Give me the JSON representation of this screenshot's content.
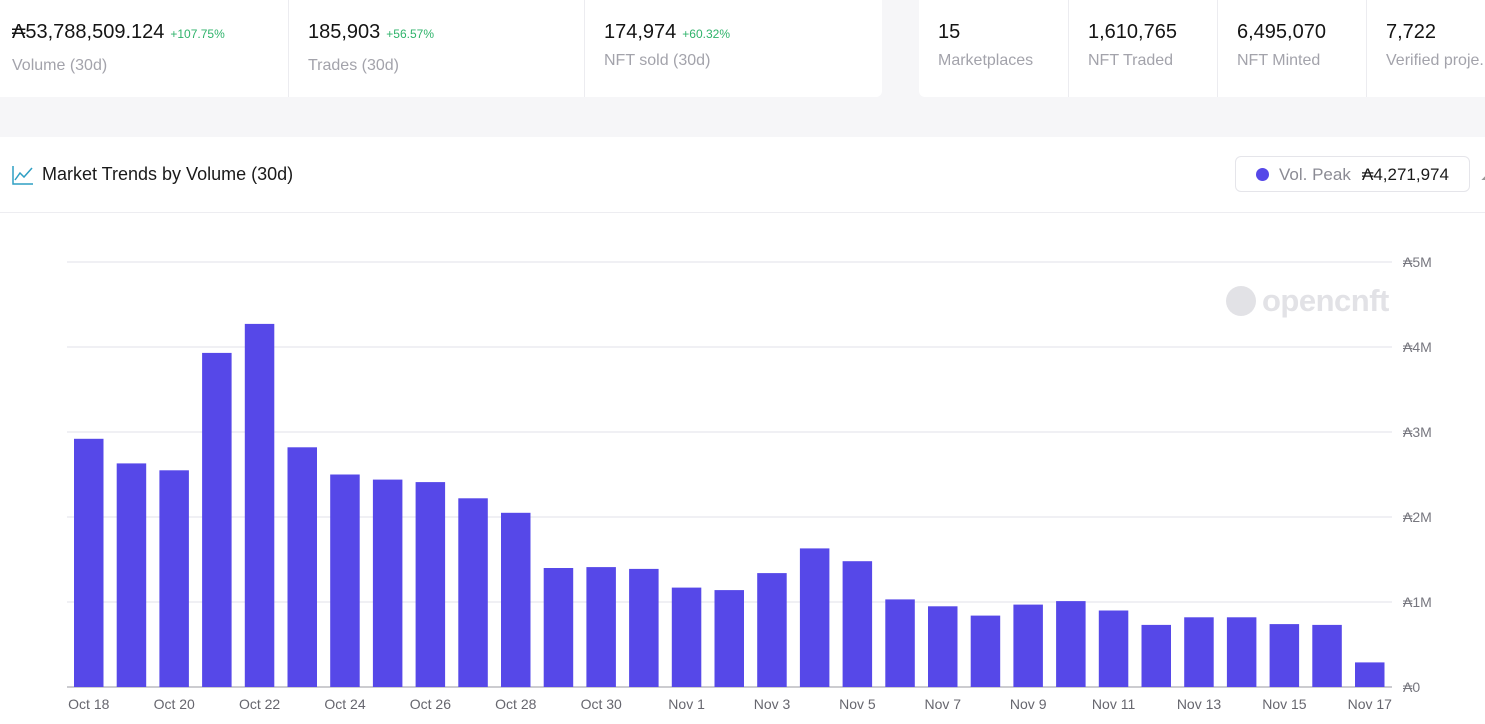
{
  "stats_left": [
    {
      "value": "₳53,788,509.124",
      "change": "+107.75%",
      "label": "Volume (30d)"
    },
    {
      "value": "185,903",
      "change": "+56.57%",
      "label": "Trades (30d)"
    },
    {
      "value": "174,974",
      "change": "+60.32%",
      "label": "NFT sold (30d)"
    }
  ],
  "stats_right": [
    {
      "value": "15",
      "label": "Marketplaces"
    },
    {
      "value": "1,610,765",
      "label": "NFT Traded"
    },
    {
      "value": "6,495,070",
      "label": "NFT Minted"
    },
    {
      "value": "7,722",
      "label": "Verified proje..."
    }
  ],
  "chart_header": {
    "icon": "trend-line-icon",
    "title": "Market Trends by Volume (30d)",
    "peak_label": "Vol. Peak",
    "peak_value": "₳4,271,974"
  },
  "watermark": "opencnft",
  "colors": {
    "bar": "#5648e8",
    "positive": "#2fb36b",
    "muted": "#a3a3ab"
  },
  "chart_data": {
    "type": "bar",
    "title": "Market Trends by Volume (30d)",
    "categories": [
      "Oct 18",
      "Oct 19",
      "Oct 20",
      "Oct 21",
      "Oct 22",
      "Oct 23",
      "Oct 24",
      "Oct 25",
      "Oct 26",
      "Oct 27",
      "Oct 28",
      "Oct 29",
      "Oct 30",
      "Oct 31",
      "Nov 1",
      "Nov 2",
      "Nov 3",
      "Nov 4",
      "Nov 5",
      "Nov 6",
      "Nov 7",
      "Nov 8",
      "Nov 9",
      "Nov 10",
      "Nov 11",
      "Nov 12",
      "Nov 13",
      "Nov 14",
      "Nov 15",
      "Nov 16",
      "Nov 17"
    ],
    "tick_labels": [
      "Oct 18",
      "Oct 20",
      "Oct 22",
      "Oct 24",
      "Oct 26",
      "Oct 28",
      "Oct 30",
      "Nov 1",
      "Nov 3",
      "Nov 5",
      "Nov 7",
      "Nov 9",
      "Nov 11",
      "Nov 13",
      "Nov 15",
      "Nov 17"
    ],
    "values": [
      2920000,
      2630000,
      2550000,
      3930000,
      4271974,
      2820000,
      2500000,
      2440000,
      2410000,
      2220000,
      2050000,
      1400000,
      1410000,
      1390000,
      1170000,
      1140000,
      1340000,
      1630000,
      1480000,
      1030000,
      950000,
      840000,
      970000,
      1010000,
      900000,
      730000,
      820000,
      820000,
      740000,
      730000,
      290000
    ],
    "y_ticks": [
      "₳0",
      "₳1M",
      "₳2M",
      "₳3M",
      "₳4M",
      "₳5M"
    ],
    "ylim": [
      0,
      5000000
    ],
    "grid": true,
    "y_axis_side": "right",
    "legend": "none"
  }
}
